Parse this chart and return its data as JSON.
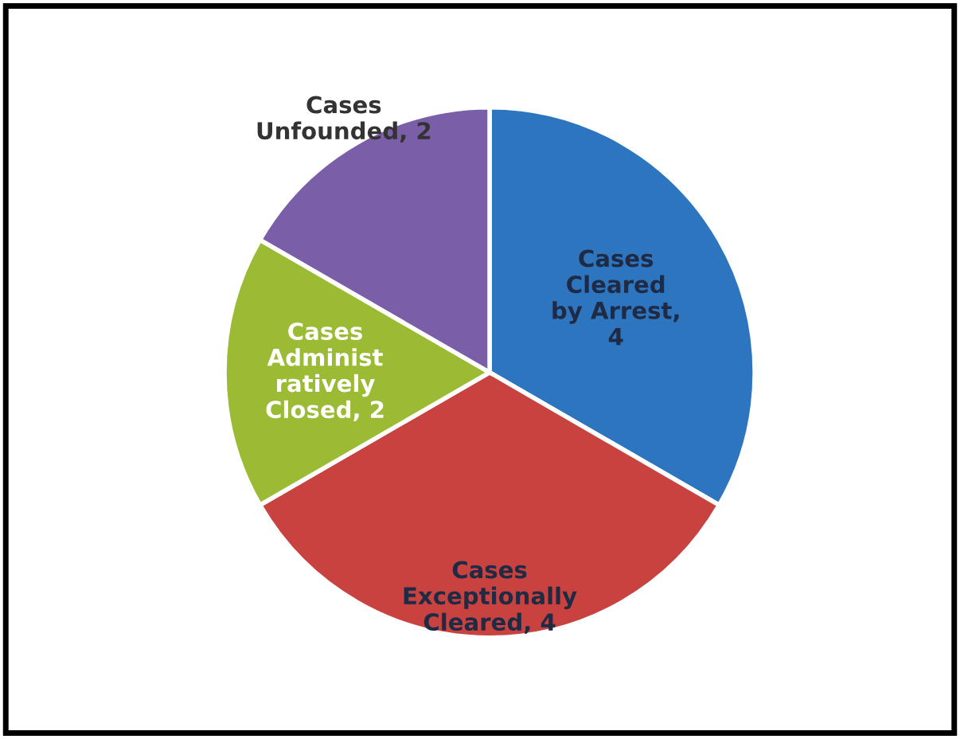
{
  "chart_data": {
    "type": "pie",
    "categories": [
      "Cases\nCleared\nby Arrest,\n4",
      "Cases\nExceptionally\nCleared, 4",
      "Cases\nAdminist\nratively\nClosed, 2",
      "Cases\nUnfounded, 2"
    ],
    "values": [
      4,
      4,
      2,
      2
    ],
    "colors": [
      "#2e75c0",
      "#c8423f",
      "#9bbb35",
      "#7a5fa8"
    ]
  }
}
